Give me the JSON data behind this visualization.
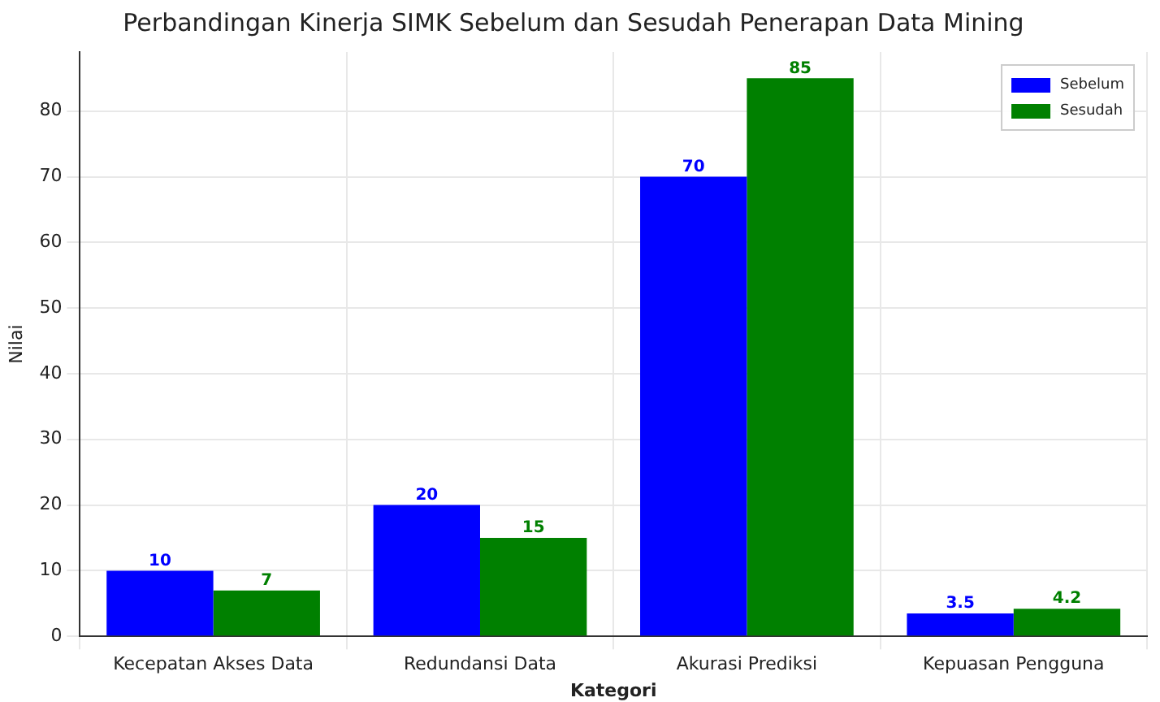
{
  "chart_data": {
    "type": "bar",
    "title": "Perbandingan Kinerja SIMK Sebelum dan Sesudah Penerapan Data Mining",
    "xlabel": "Kategori",
    "ylabel": "Nilai",
    "categories": [
      "Kecepatan Akses Data",
      "Redundansi Data",
      "Akurasi Prediksi",
      "Kepuasan Pengguna"
    ],
    "series": [
      {
        "name": "Sebelum",
        "color": "#0000ff",
        "values": [
          10,
          20,
          70,
          3.5
        ]
      },
      {
        "name": "Sesudah",
        "color": "#008000",
        "values": [
          7,
          15,
          85,
          4.2
        ]
      }
    ],
    "ylim": [
      0,
      89
    ],
    "yticks": [
      0,
      10,
      20,
      30,
      40,
      50,
      60,
      70,
      80
    ],
    "grid": true,
    "legend": "top right",
    "data_labels": true
  }
}
